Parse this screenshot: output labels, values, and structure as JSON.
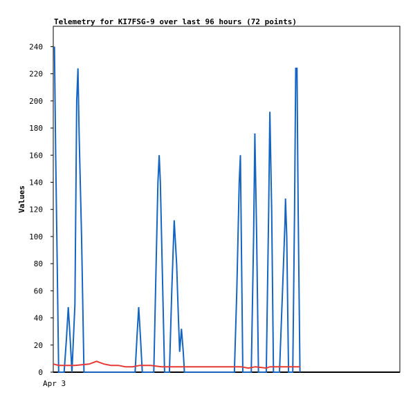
{
  "chart_data": {
    "type": "line",
    "title": "Telemetry for KI7FSG-9 over last 96 hours (72 points)",
    "xlabel": "",
    "ylabel": "Values",
    "ylim": [
      0,
      255
    ],
    "yticks": [
      0,
      20,
      40,
      60,
      80,
      100,
      120,
      140,
      160,
      180,
      200,
      220,
      240
    ],
    "xlim": [
      "2024-04-03 00:00",
      "2024-04-07 00:00"
    ],
    "xticks": [
      {
        "t": "2024-04-03 00:00",
        "label": "Apr 3"
      }
    ],
    "grid": false,
    "legend": "none",
    "series": [
      {
        "color": "#1565c0",
        "points": [
          [
            "2024-04-03 00:20",
            240
          ],
          [
            "2024-04-03 00:40",
            160
          ],
          [
            "2024-04-03 01:05",
            80
          ],
          [
            "2024-04-03 01:30",
            0
          ],
          [
            "2024-04-03 03:00",
            0
          ],
          [
            "2024-04-03 03:40",
            25
          ],
          [
            "2024-04-03 04:10",
            48
          ],
          [
            "2024-04-03 04:40",
            25
          ],
          [
            "2024-04-03 05:10",
            0
          ],
          [
            "2024-04-03 06:00",
            50
          ],
          [
            "2024-04-03 06:30",
            200
          ],
          [
            "2024-04-03 06:50",
            224
          ],
          [
            "2024-04-03 07:10",
            175
          ],
          [
            "2024-04-03 07:50",
            100
          ],
          [
            "2024-04-03 08:30",
            0
          ],
          [
            "2024-04-03 22:40",
            0
          ],
          [
            "2024-04-03 23:10",
            25
          ],
          [
            "2024-04-03 23:40",
            48
          ],
          [
            "2024-04-04 00:10",
            25
          ],
          [
            "2024-04-04 00:40",
            0
          ],
          [
            "2024-04-04 03:50",
            0
          ],
          [
            "2024-04-04 04:30",
            80
          ],
          [
            "2024-04-04 05:00",
            140
          ],
          [
            "2024-04-04 05:20",
            160
          ],
          [
            "2024-04-04 05:40",
            140
          ],
          [
            "2024-04-04 06:10",
            80
          ],
          [
            "2024-04-04 06:50",
            0
          ],
          [
            "2024-04-04 08:10",
            0
          ],
          [
            "2024-04-04 08:50",
            60
          ],
          [
            "2024-04-04 09:30",
            112
          ],
          [
            "2024-04-04 10:10",
            80
          ],
          [
            "2024-04-04 10:40",
            40
          ],
          [
            "2024-04-04 11:00",
            15
          ],
          [
            "2024-04-04 11:30",
            32
          ],
          [
            "2024-04-04 12:00",
            15
          ],
          [
            "2024-04-04 12:20",
            0
          ],
          [
            "2024-04-05 02:10",
            0
          ],
          [
            "2024-04-05 02:50",
            60
          ],
          [
            "2024-04-05 03:30",
            140
          ],
          [
            "2024-04-05 03:50",
            160
          ],
          [
            "2024-04-05 04:30",
            0
          ],
          [
            "2024-04-05 06:50",
            0
          ],
          [
            "2024-04-05 07:30",
            100
          ],
          [
            "2024-04-05 07:50",
            176
          ],
          [
            "2024-04-05 08:20",
            100
          ],
          [
            "2024-04-05 08:50",
            0
          ],
          [
            "2024-04-05 11:00",
            0
          ],
          [
            "2024-04-05 11:40",
            120
          ],
          [
            "2024-04-05 12:00",
            192
          ],
          [
            "2024-04-05 12:30",
            120
          ],
          [
            "2024-04-05 13:00",
            0
          ],
          [
            "2024-04-05 14:40",
            0
          ],
          [
            "2024-04-05 15:30",
            60
          ],
          [
            "2024-04-05 16:10",
            110
          ],
          [
            "2024-04-05 16:20",
            128
          ],
          [
            "2024-04-05 16:40",
            100
          ],
          [
            "2024-04-05 17:10",
            0
          ],
          [
            "2024-04-05 18:20",
            0
          ],
          [
            "2024-04-05 18:50",
            120
          ],
          [
            "2024-04-05 19:10",
            224
          ],
          [
            "2024-04-05 19:30",
            224
          ],
          [
            "2024-04-05 19:50",
            120
          ],
          [
            "2024-04-05 20:20",
            0
          ]
        ]
      },
      {
        "color": "#e53935",
        "points": [
          [
            "2024-04-03 00:00",
            6
          ],
          [
            "2024-04-03 01:30",
            5
          ],
          [
            "2024-04-03 04:00",
            5
          ],
          [
            "2024-04-03 06:00",
            5
          ],
          [
            "2024-04-03 08:00",
            5.5
          ],
          [
            "2024-04-03 10:00",
            6
          ],
          [
            "2024-04-03 12:00",
            8
          ],
          [
            "2024-04-03 14:00",
            6
          ],
          [
            "2024-04-03 16:00",
            5
          ],
          [
            "2024-04-03 18:00",
            5
          ],
          [
            "2024-04-03 20:00",
            4
          ],
          [
            "2024-04-03 22:00",
            4
          ],
          [
            "2024-04-04 00:00",
            5
          ],
          [
            "2024-04-04 03:00",
            5
          ],
          [
            "2024-04-04 06:00",
            4
          ],
          [
            "2024-04-04 12:00",
            4
          ],
          [
            "2024-04-04 18:00",
            4
          ],
          [
            "2024-04-05 00:00",
            4
          ],
          [
            "2024-04-05 04:00",
            4
          ],
          [
            "2024-04-05 06:00",
            3
          ],
          [
            "2024-04-05 08:00",
            4
          ],
          [
            "2024-04-05 11:00",
            3
          ],
          [
            "2024-04-05 12:00",
            4
          ],
          [
            "2024-04-05 16:00",
            4
          ],
          [
            "2024-04-05 20:20",
            4
          ]
        ]
      }
    ]
  }
}
